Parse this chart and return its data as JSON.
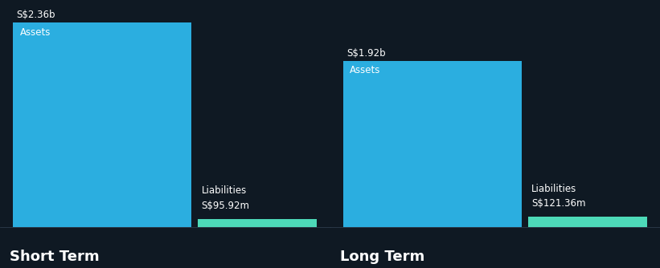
{
  "background_color": "#0f1923",
  "bar_color_assets": "#2baee0",
  "bar_color_liabilities": "#4dd9b8",
  "text_color": "#ffffff",
  "short_term": {
    "assets_value": 2360,
    "assets_label": "S$2.36b",
    "assets_text": "Assets",
    "liabilities_value": 95.92,
    "liabilities_label": "S$95.92m",
    "liabilities_text": "Liabilities",
    "label": "Short Term"
  },
  "long_term": {
    "assets_value": 1920,
    "assets_label": "S$1.92b",
    "assets_text": "Assets",
    "liabilities_value": 121.36,
    "liabilities_label": "S$121.36m",
    "liabilities_text": "Liabilities",
    "label": "Long Term"
  },
  "value_label_fontsize": 8.5,
  "bar_label_fontsize": 8.5,
  "section_label_fontsize": 13,
  "label_fontweight": "bold",
  "max_val": 2360
}
